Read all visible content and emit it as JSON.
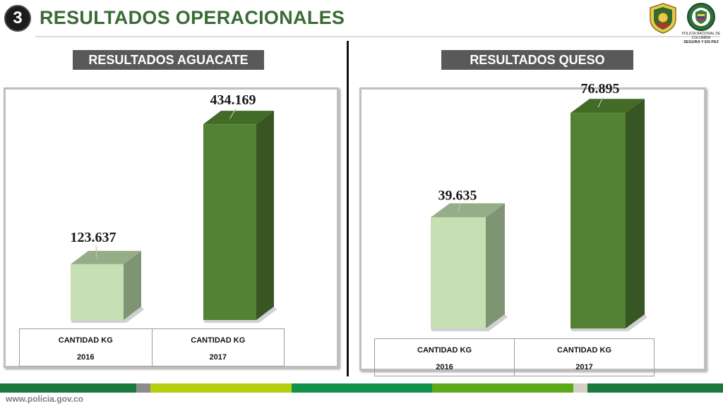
{
  "header": {
    "section_number": "3",
    "title": "RESULTADOS OPERACIONALES",
    "logo_caption_top": "POLICÍA NACIONAL DE COLOMBIA",
    "logo_caption_bottom": "SEGURA Y EN PAZ"
  },
  "footer": {
    "url": "www.policia.gov.co",
    "stripe_colors": [
      "#1a7a3e",
      "#8c8c8c",
      "#b5cf0f",
      "#12914a",
      "#5daa19",
      "#d6d0c4",
      "#1a7a3e"
    ]
  },
  "colors": {
    "title_green": "#3a6b35",
    "bar_2016_front": "#c6e0b4",
    "bar_2016_side": "#7f9473",
    "bar_2016_top": "#97ad88",
    "bar_2017_front": "#548235",
    "bar_2017_side": "#375623",
    "bar_2017_top": "#426b28"
  },
  "chart_data": [
    {
      "type": "bar",
      "title": "RESULTADOS AGUACATE",
      "categories": [
        "2016",
        "2017"
      ],
      "category_labels": [
        "CANTIDAD KG",
        "CANTIDAD KG"
      ],
      "values": [
        123637,
        434169
      ],
      "value_labels": [
        "123.637",
        "434.169"
      ],
      "ylim": [
        0,
        500000
      ],
      "legend": "none",
      "grid": false
    },
    {
      "type": "bar",
      "title": "RESULTADOS QUESO",
      "categories": [
        "2016",
        "2017"
      ],
      "category_labels": [
        "CANTIDAD KG",
        "CANTIDAD KG"
      ],
      "values": [
        39635,
        76895
      ],
      "value_labels": [
        "39.635",
        "76.895"
      ],
      "ylim": [
        0,
        85000
      ],
      "legend": "none",
      "grid": false
    }
  ]
}
